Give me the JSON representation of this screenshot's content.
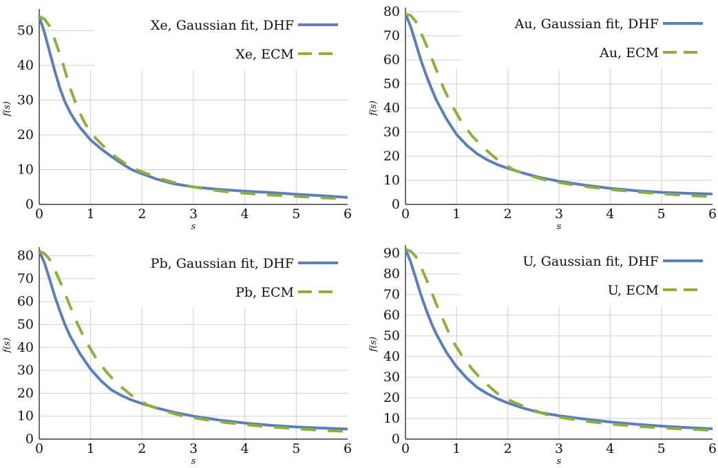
{
  "chart_data": [
    {
      "type": "line",
      "xlabel": "s",
      "ylabel": "f(s)",
      "xlim": [
        0,
        6
      ],
      "ylim": [
        0,
        55
      ],
      "xticks": [
        0,
        1,
        2,
        3,
        4,
        5,
        6
      ],
      "yticks": [
        0,
        10,
        20,
        30,
        40,
        50
      ],
      "grid": true,
      "legend_position": "top-right",
      "colors": {
        "dhf": "#5b7fbd",
        "ecm": "#8db03a"
      },
      "series": [
        {
          "name": "Xe, Gaussian fit, DHF",
          "style": "solid",
          "x": [
            0,
            0.1,
            0.2,
            0.3,
            0.4,
            0.5,
            0.6,
            0.7,
            0.8,
            1.0,
            1.2,
            1.4,
            1.6,
            1.8,
            2.0,
            2.3,
            2.6,
            3.0,
            3.5,
            4.0,
            4.5,
            5.0,
            5.5,
            6.0
          ],
          "y": [
            54,
            49.5,
            44,
            38.5,
            33.5,
            29.5,
            26.5,
            24,
            22,
            18.5,
            16,
            13.8,
            11.8,
            10,
            8.8,
            7.2,
            6,
            5,
            4.3,
            3.8,
            3.4,
            2.9,
            2.5,
            2
          ]
        },
        {
          "name": "Xe, ECM",
          "style": "dashed",
          "x": [
            0,
            0.1,
            0.2,
            0.3,
            0.45,
            0.6,
            0.75,
            0.9,
            1.1,
            1.3,
            1.5,
            1.8,
            2.1,
            2.4,
            2.8,
            3.2,
            3.6,
            4.0,
            4.5,
            5.0,
            5.5,
            6.0
          ],
          "y": [
            54,
            53.3,
            51.3,
            47.5,
            41,
            33.5,
            27.5,
            23,
            19,
            16,
            13.5,
            10.5,
            8.8,
            7.2,
            5.6,
            4.5,
            3.7,
            3.2,
            2.7,
            2.3,
            1.9,
            1.6
          ]
        }
      ]
    },
    {
      "type": "line",
      "xlabel": "s",
      "ylabel": "f(s)",
      "xlim": [
        0,
        6
      ],
      "ylim": [
        0,
        80
      ],
      "xticks": [
        0,
        1,
        2,
        3,
        4,
        5,
        6
      ],
      "yticks": [
        0,
        10,
        20,
        30,
        40,
        50,
        60,
        70,
        80
      ],
      "grid": true,
      "legend_position": "top-right",
      "colors": {
        "dhf": "#5b7fbd",
        "ecm": "#8db03a"
      },
      "series": [
        {
          "name": "Au, Gaussian fit, DHF",
          "style": "solid",
          "x": [
            0,
            0.1,
            0.2,
            0.3,
            0.4,
            0.5,
            0.6,
            0.8,
            1.0,
            1.2,
            1.4,
            1.6,
            1.8,
            2.0,
            2.3,
            2.6,
            3.0,
            3.5,
            4.0,
            4.5,
            5.0,
            5.5,
            6.0
          ],
          "y": [
            79,
            74,
            67,
            60,
            54,
            48.5,
            43.5,
            35.5,
            29,
            24.5,
            21,
            18.5,
            16.5,
            15,
            13,
            11.3,
            9.6,
            8,
            6.7,
            5.7,
            5,
            4.6,
            4.3
          ]
        },
        {
          "name": "Au, ECM",
          "style": "dashed",
          "x": [
            0,
            0.1,
            0.2,
            0.3,
            0.45,
            0.6,
            0.75,
            0.9,
            1.1,
            1.3,
            1.5,
            1.8,
            2.1,
            2.4,
            2.8,
            3.2,
            3.6,
            4.0,
            4.5,
            5.0,
            5.5,
            6.0
          ],
          "y": [
            79,
            78.5,
            76,
            71.5,
            64,
            56,
            48,
            41.5,
            34,
            28.5,
            24,
            18.5,
            14.5,
            12,
            9.8,
            8.4,
            7.2,
            6.2,
            5.2,
            4.4,
            3.7,
            3.2
          ]
        }
      ]
    },
    {
      "type": "line",
      "xlabel": "s",
      "ylabel": "f(s)",
      "xlim": [
        0,
        6
      ],
      "ylim": [
        0,
        82
      ],
      "xticks": [
        0,
        1,
        2,
        3,
        4,
        5,
        6
      ],
      "yticks": [
        0,
        10,
        20,
        30,
        40,
        50,
        60,
        70,
        80
      ],
      "grid": true,
      "legend_position": "top-right",
      "colors": {
        "dhf": "#5b7fbd",
        "ecm": "#8db03a"
      },
      "series": [
        {
          "name": "Pb, Gaussian fit, DHF",
          "style": "solid",
          "x": [
            0,
            0.1,
            0.2,
            0.3,
            0.4,
            0.5,
            0.6,
            0.8,
            1.0,
            1.2,
            1.4,
            1.6,
            1.8,
            2.0,
            2.3,
            2.6,
            3.0,
            3.5,
            4.0,
            4.5,
            5.0,
            5.5,
            6.0
          ],
          "y": [
            82,
            77,
            70,
            62.5,
            56,
            50,
            45,
            37,
            30.5,
            25.5,
            21.5,
            19,
            17,
            15.5,
            13.5,
            11.8,
            10,
            8.3,
            7,
            6,
            5.3,
            4.8,
            4.4
          ]
        },
        {
          "name": "Pb, ECM",
          "style": "dashed",
          "x": [
            0,
            0.1,
            0.2,
            0.3,
            0.45,
            0.6,
            0.75,
            0.9,
            1.1,
            1.3,
            1.5,
            1.8,
            2.1,
            2.4,
            2.8,
            3.2,
            3.6,
            4.0,
            4.5,
            5.0,
            5.5,
            6.0
          ],
          "y": [
            82,
            81,
            78.5,
            74,
            66.5,
            58,
            50,
            43,
            35.5,
            29.5,
            24.5,
            19,
            15,
            12.5,
            10,
            8.6,
            7.3,
            6.3,
            5.3,
            4.5,
            3.8,
            3.3
          ]
        }
      ]
    },
    {
      "type": "line",
      "xlabel": "s",
      "ylabel": "f(s)",
      "xlim": [
        0,
        6
      ],
      "ylim": [
        0,
        92
      ],
      "xticks": [
        0,
        1,
        2,
        3,
        4,
        5,
        6
      ],
      "yticks": [
        0,
        10,
        20,
        30,
        40,
        50,
        60,
        70,
        80,
        90
      ],
      "grid": true,
      "legend_position": "top-right",
      "colors": {
        "dhf": "#5b7fbd",
        "ecm": "#8db03a"
      },
      "series": [
        {
          "name": "U, Gaussian fit, DHF",
          "style": "solid",
          "x": [
            0,
            0.1,
            0.2,
            0.3,
            0.4,
            0.5,
            0.6,
            0.8,
            1.0,
            1.2,
            1.4,
            1.6,
            1.8,
            2.0,
            2.3,
            2.6,
            3.0,
            3.5,
            4.0,
            4.5,
            5.0,
            5.5,
            6.0
          ],
          "y": [
            92,
            86,
            78,
            70,
            63,
            56.5,
            51,
            42,
            35,
            29.5,
            25,
            22,
            19.5,
            17.5,
            15,
            13,
            11.3,
            9.7,
            8.3,
            7.2,
            6.3,
            5.6,
            5
          ]
        },
        {
          "name": "U, ECM",
          "style": "dashed",
          "x": [
            0,
            0.1,
            0.2,
            0.3,
            0.45,
            0.6,
            0.75,
            0.9,
            1.1,
            1.3,
            1.5,
            1.8,
            2.1,
            2.4,
            2.8,
            3.2,
            3.6,
            4.0,
            4.5,
            5.0,
            5.5,
            6.0
          ],
          "y": [
            92,
            91,
            88.5,
            83.5,
            75,
            65.5,
            57,
            48.5,
            40.5,
            34,
            28.5,
            22,
            18,
            15,
            11.5,
            9.8,
            8.4,
            7.3,
            6.2,
            5.4,
            4.8,
            4.3
          ]
        }
      ]
    }
  ]
}
